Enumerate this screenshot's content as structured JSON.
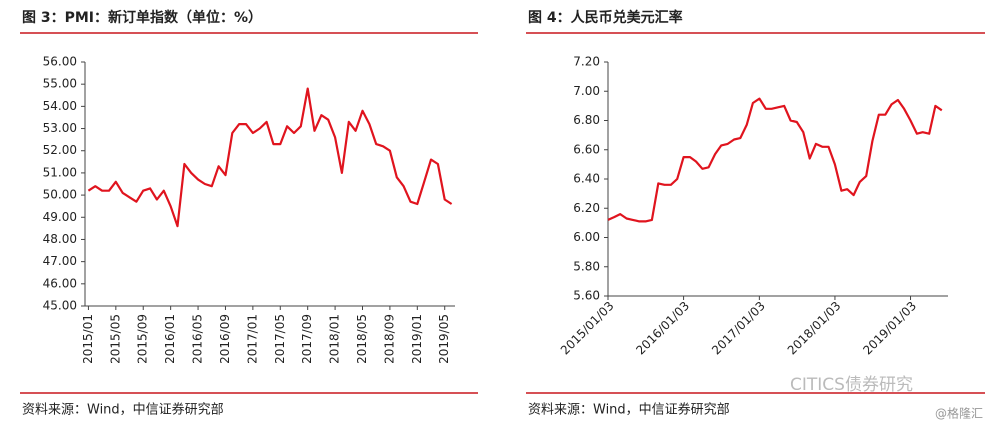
{
  "chart_data": [
    {
      "type": "line",
      "title": "图 3：PMI：新订单指数（单位：%）",
      "source": "资料来源：Wind，中信证券研究部",
      "color": "#e0141e",
      "categories": [
        "2015/01",
        null,
        null,
        null,
        "2015/05",
        null,
        null,
        null,
        "2015/09",
        null,
        null,
        null,
        "2016/01",
        null,
        null,
        null,
        "2016/05",
        null,
        null,
        null,
        "2016/09",
        null,
        null,
        null,
        "2017/01",
        null,
        null,
        null,
        "2017/05",
        null,
        null,
        null,
        "2017/09",
        null,
        null,
        null,
        "2018/01",
        null,
        null,
        null,
        "2018/05",
        null,
        null,
        null,
        "2018/09",
        null,
        null,
        null,
        "2019/01",
        null,
        null,
        null,
        "2019/05",
        null
      ],
      "values": [
        50.2,
        50.4,
        50.2,
        50.2,
        50.6,
        50.1,
        49.9,
        49.7,
        50.2,
        50.3,
        49.8,
        50.2,
        49.5,
        48.6,
        51.4,
        51.0,
        50.7,
        50.5,
        50.4,
        51.3,
        50.9,
        52.8,
        53.2,
        53.2,
        52.8,
        53.0,
        53.3,
        52.3,
        52.3,
        53.1,
        52.8,
        53.1,
        54.8,
        52.9,
        53.6,
        53.4,
        52.6,
        51.0,
        53.3,
        52.9,
        53.8,
        53.2,
        52.3,
        52.2,
        52.0,
        50.8,
        50.4,
        49.7,
        49.6,
        50.6,
        51.6,
        51.4,
        49.8,
        49.6
      ],
      "ylim": [
        45,
        56
      ],
      "yticks": [
        {
          "value": 45,
          "label": "45.00"
        },
        {
          "value": 46,
          "label": "46.00"
        },
        {
          "value": 47,
          "label": "47.00"
        },
        {
          "value": 48,
          "label": "48.00"
        },
        {
          "value": 49,
          "label": "49.00"
        },
        {
          "value": 50,
          "label": "50.00"
        },
        {
          "value": 51,
          "label": "51.00"
        },
        {
          "value": 52,
          "label": "52.00"
        },
        {
          "value": 53,
          "label": "53.00"
        },
        {
          "value": 54,
          "label": "54.00"
        },
        {
          "value": 55,
          "label": "55.00"
        },
        {
          "value": 56,
          "label": "56.00"
        }
      ]
    },
    {
      "type": "line",
      "title": "图 4：人民币兑美元汇率",
      "source": "资料来源：Wind，中信证券研究部",
      "color": "#e0141e",
      "x": [
        "2015/01/03",
        "2015/02/03",
        "2015/03/03",
        "2015/04/03",
        "2015/05/03",
        "2015/06/03",
        "2015/07/03",
        "2015/08/03",
        "2015/09/03",
        "2015/10/03",
        "2015/11/03",
        "2015/12/03",
        "2016/01/03",
        "2016/02/03",
        "2016/03/03",
        "2016/04/03",
        "2016/05/03",
        "2016/06/03",
        "2016/07/03",
        "2016/08/03",
        "2016/09/03",
        "2016/10/03",
        "2016/11/03",
        "2016/12/03",
        "2017/01/03",
        "2017/02/03",
        "2017/03/03",
        "2017/04/03",
        "2017/05/03",
        "2017/06/03",
        "2017/07/03",
        "2017/08/03",
        "2017/09/03",
        "2017/10/03",
        "2017/11/03",
        "2017/12/03",
        "2018/01/03",
        "2018/02/03",
        "2018/03/03",
        "2018/04/03",
        "2018/05/03",
        "2018/06/03",
        "2018/07/03",
        "2018/08/03",
        "2018/09/03",
        "2018/10/03",
        "2018/11/03",
        "2018/12/03",
        "2019/01/03",
        "2019/02/03",
        "2019/03/03",
        "2019/04/03",
        "2019/05/03",
        "2019/06/03"
      ],
      "values": [
        6.12,
        6.14,
        6.16,
        6.13,
        6.12,
        6.11,
        6.11,
        6.12,
        6.37,
        6.36,
        6.36,
        6.4,
        6.55,
        6.55,
        6.52,
        6.47,
        6.48,
        6.57,
        6.63,
        6.64,
        6.67,
        6.68,
        6.77,
        6.92,
        6.95,
        6.88,
        6.88,
        6.89,
        6.9,
        6.8,
        6.79,
        6.72,
        6.54,
        6.64,
        6.62,
        6.62,
        6.5,
        6.32,
        6.33,
        6.29,
        6.38,
        6.42,
        6.66,
        6.84,
        6.84,
        6.91,
        6.94,
        6.88,
        6.8,
        6.71,
        6.72,
        6.71,
        6.9,
        6.87
      ],
      "xlim": [
        "2015/01/03",
        "2019/07/03"
      ],
      "xticks": [
        "2015/01/03",
        "2016/01/03",
        "2017/01/03",
        "2018/01/03",
        "2019/01/03"
      ],
      "ylim": [
        5.6,
        7.2
      ],
      "yticks": [
        {
          "value": 5.6,
          "label": "5.60"
        },
        {
          "value": 5.8,
          "label": "5.80"
        },
        {
          "value": 6.0,
          "label": "6.00"
        },
        {
          "value": 6.2,
          "label": "6.20"
        },
        {
          "value": 6.4,
          "label": "6.40"
        },
        {
          "value": 6.6,
          "label": "6.60"
        },
        {
          "value": 6.8,
          "label": "6.80"
        },
        {
          "value": 7.0,
          "label": "7.00"
        },
        {
          "value": 7.2,
          "label": "7.20"
        }
      ]
    }
  ],
  "watermarks": [
    "CITICS债券研究",
    "@格隆汇"
  ]
}
